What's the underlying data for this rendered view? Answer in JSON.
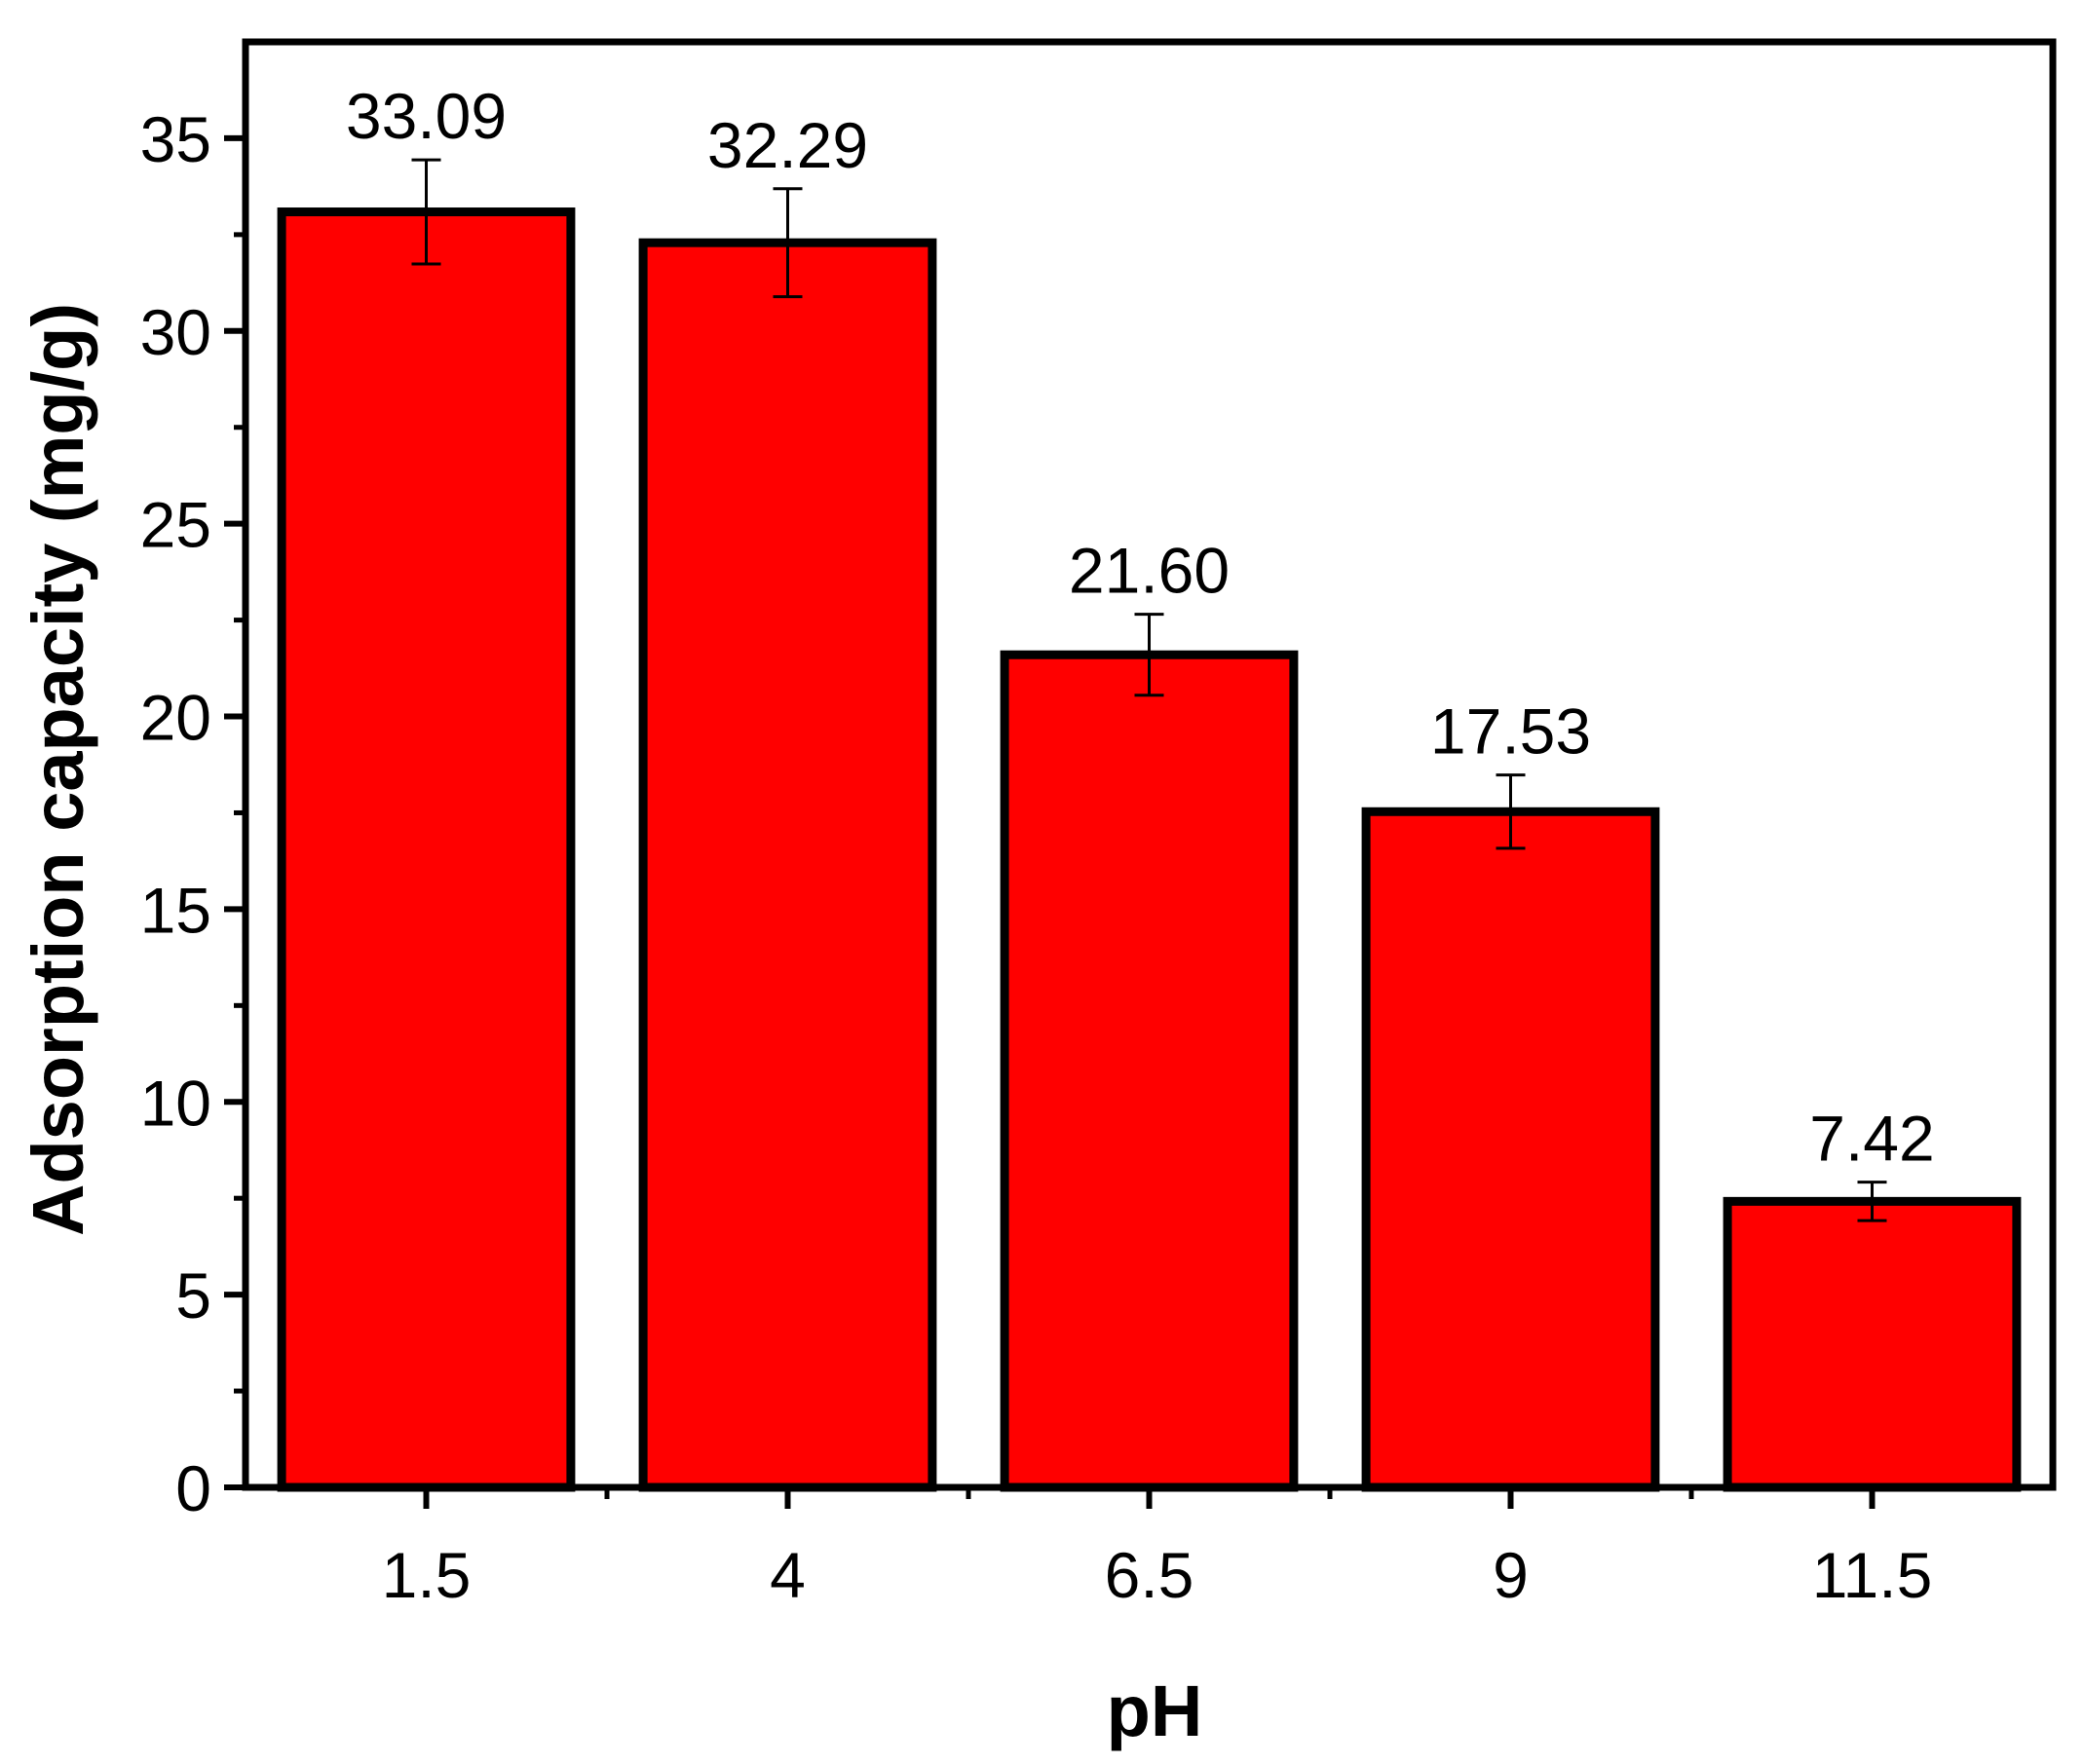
{
  "chart_data": {
    "type": "bar",
    "title": "",
    "xlabel": "pH",
    "ylabel": "Adsorption capacity (mg/g)",
    "categories": [
      "1.5",
      "4",
      "6.5",
      "9",
      "11.5"
    ],
    "values": [
      33.09,
      32.29,
      21.6,
      17.53,
      7.42
    ],
    "value_labels": [
      "33.09",
      "32.29",
      "21.60",
      "17.53",
      "7.42"
    ],
    "error": [
      1.35,
      1.4,
      1.05,
      0.95,
      0.5
    ],
    "ylim": [
      0,
      37.5
    ],
    "yticks": [
      "0",
      "5",
      "10",
      "15",
      "20",
      "25",
      "30",
      "35"
    ],
    "bar_color": "#ff0000",
    "edge_color": "#000000",
    "grid": false,
    "legend": "none"
  }
}
